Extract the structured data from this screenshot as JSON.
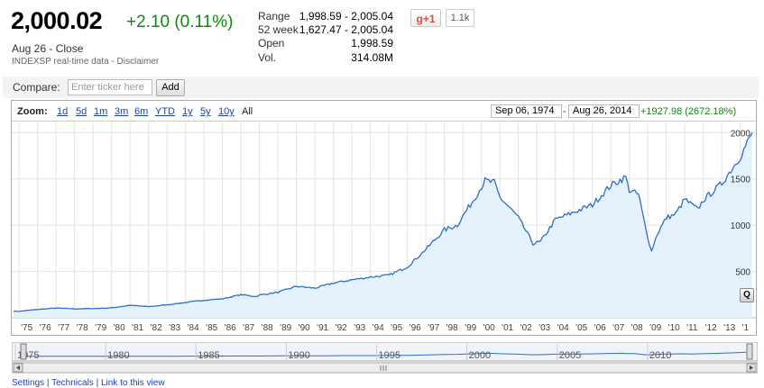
{
  "quote": {
    "price": "2,000.02",
    "change": "+2.10 (0.11%)",
    "date_status": "Aug 26 - Close",
    "source": "INDEXSP real-time data - Disclaimer"
  },
  "stats": [
    {
      "label": "Range",
      "value": "1,998.59 - 2,005.04"
    },
    {
      "label": "52 week",
      "value": "1,627.47 - 2,005.04"
    },
    {
      "label": "Open",
      "value": "1,998.59"
    },
    {
      "label": "Vol.",
      "value": "314.08M"
    }
  ],
  "social": {
    "plus_label": "g+1",
    "count": "1.1k"
  },
  "compare": {
    "label": "Compare:",
    "placeholder": "Enter ticker here",
    "button": "Add"
  },
  "zoom": {
    "label": "Zoom:",
    "links": [
      "1d",
      "5d",
      "1m",
      "3m",
      "6m",
      "YTD",
      "1y",
      "5y",
      "10y"
    ],
    "current": "All",
    "start_date": "Sep 06, 1974",
    "separator": "-",
    "end_date": "Aug 26, 2014",
    "range_change": "+1927.98 (2672.18%)"
  },
  "q_button": "Q",
  "colors": {
    "line": "#2a6fc9",
    "fill": "#e6f2fb",
    "up": "#0a8a0a",
    "link": "#1a3fbf"
  },
  "chart_data": {
    "type": "area",
    "ylim": [
      0,
      2100
    ],
    "yticks": [
      500,
      1000,
      1500,
      2000
    ],
    "x_tick_labels": [
      "'75",
      "'76",
      "'77",
      "'78",
      "'79",
      "'80",
      "'81",
      "'82",
      "'83",
      "'84",
      "'85",
      "'86",
      "'87",
      "'88",
      "'89",
      "'90",
      "'91",
      "'92",
      "'93",
      "'94",
      "'95",
      "'96",
      "'97",
      "'98",
      "'99",
      "'00",
      "'01",
      "'02",
      "'03",
      "'04",
      "'05",
      "'06",
      "'07",
      "'08",
      "'09",
      "'10",
      "'11",
      "'12",
      "'13",
      "'1"
    ],
    "x": [
      1974.7,
      1975,
      1976,
      1977,
      1978,
      1979,
      1980,
      1981,
      1982,
      1983,
      1984,
      1985,
      1986,
      1987,
      1987.8,
      1988,
      1989,
      1990,
      1991,
      1992,
      1993,
      1994,
      1995,
      1996,
      1997,
      1998,
      1998.7,
      1999,
      1999.6,
      2000.2,
      2000.7,
      2001,
      2001.7,
      2002,
      2002.8,
      2003.2,
      2004,
      2005,
      2006,
      2007,
      2007.8,
      2008,
      2008.5,
      2008.9,
      2009.2,
      2009.5,
      2010,
      2010.5,
      2011,
      2011.7,
      2012,
      2013,
      2014,
      2014.65
    ],
    "y": [
      71,
      70,
      90,
      105,
      96,
      100,
      107,
      135,
      120,
      140,
      165,
      190,
      205,
      250,
      230,
      245,
      275,
      340,
      320,
      375,
      410,
      440,
      460,
      550,
      740,
      950,
      1000,
      1100,
      1280,
      1480,
      1460,
      1300,
      1150,
      1080,
      800,
      820,
      1060,
      1140,
      1220,
      1430,
      1520,
      1380,
      1330,
      950,
      720,
      900,
      1080,
      1120,
      1280,
      1170,
      1270,
      1450,
      1740,
      2000
    ]
  },
  "navigator": {
    "year_labels": [
      "1975",
      "1980",
      "1985",
      "1990",
      "1995",
      "2000",
      "2005",
      "2010"
    ]
  },
  "footer": "Settings | Technicals | Link to this view"
}
